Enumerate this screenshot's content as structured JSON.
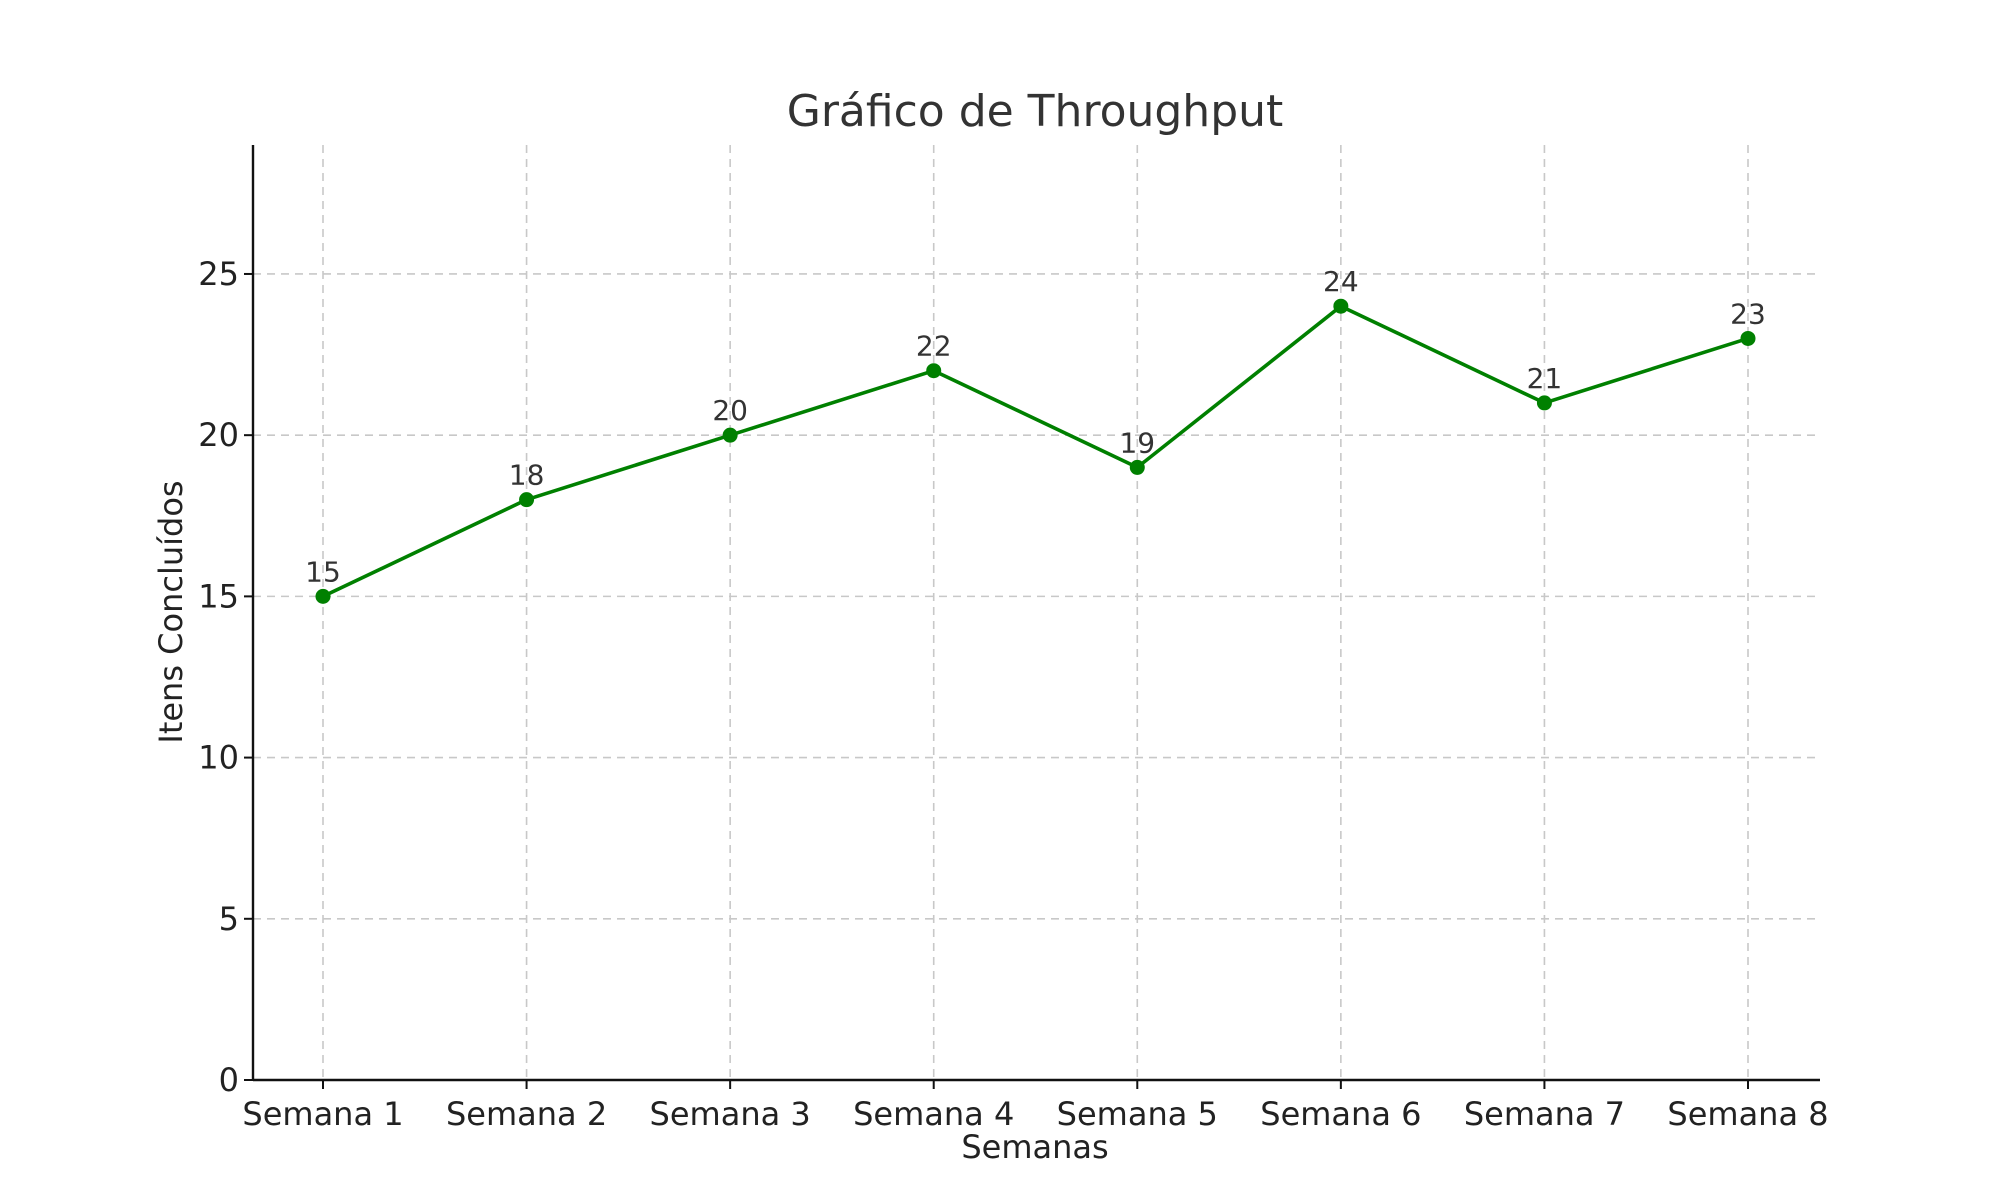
{
  "chart_data": {
    "type": "line",
    "title": "Gráfico de Throughput",
    "xlabel": "Semanas",
    "ylabel": "Itens Concluídos",
    "categories": [
      "Semana 1",
      "Semana 2",
      "Semana 3",
      "Semana 4",
      "Semana 5",
      "Semana 6",
      "Semana 7",
      "Semana 8"
    ],
    "series": [
      {
        "values": [
          15,
          18,
          20,
          22,
          19,
          24,
          21,
          23
        ],
        "color": "#008000"
      }
    ],
    "data_labels": [
      "15",
      "18",
      "20",
      "22",
      "19",
      "24",
      "21",
      "23"
    ],
    "ylim": [
      0,
      29
    ],
    "yticks": [
      0,
      5,
      10,
      15,
      20,
      25
    ],
    "ytick_labels": [
      "0",
      "5",
      "10",
      "15",
      "20",
      "25"
    ],
    "grid": true,
    "legend": "none"
  }
}
